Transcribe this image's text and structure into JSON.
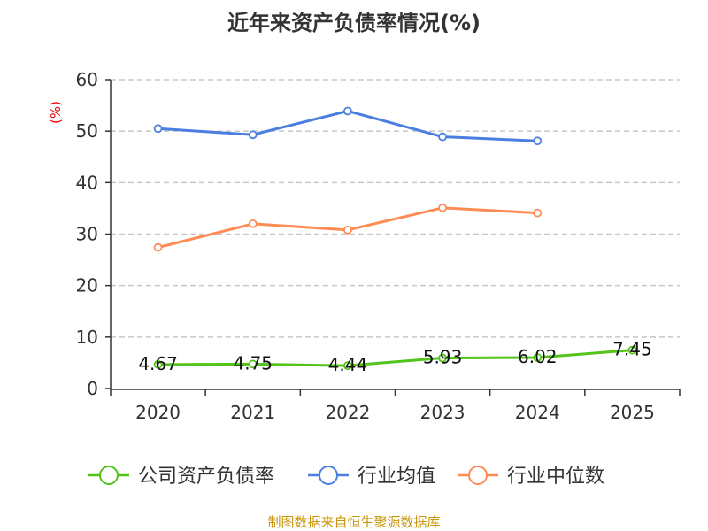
{
  "chart_data": {
    "type": "line",
    "title": "近年来资产负债率情况(%)",
    "ylabel": "(%)",
    "categories": [
      "2020",
      "2021",
      "2022",
      "2023",
      "2024",
      "2025"
    ],
    "ylim": [
      0,
      60
    ],
    "yticks": [
      0,
      10,
      20,
      30,
      40,
      50,
      60
    ],
    "grid": true,
    "legend_position": "bottom",
    "series": [
      {
        "name": "公司资产负债率",
        "color": "#52c41a",
        "values": [
          4.67,
          4.75,
          4.44,
          5.93,
          6.02,
          7.45
        ],
        "labels": [
          "4.67",
          "4.75",
          "4.44",
          "5.93",
          "6.02",
          "7.45"
        ]
      },
      {
        "name": "行业均值",
        "color": "#4a7fe0",
        "values": [
          50.5,
          49.3,
          53.9,
          48.9,
          48.1,
          null
        ]
      },
      {
        "name": "行业中位数",
        "color": "#ff8c55",
        "values": [
          27.4,
          32.0,
          30.8,
          35.1,
          34.1,
          null
        ]
      }
    ]
  },
  "footer": {
    "source": "制图数据来自恒生聚源数据库"
  }
}
